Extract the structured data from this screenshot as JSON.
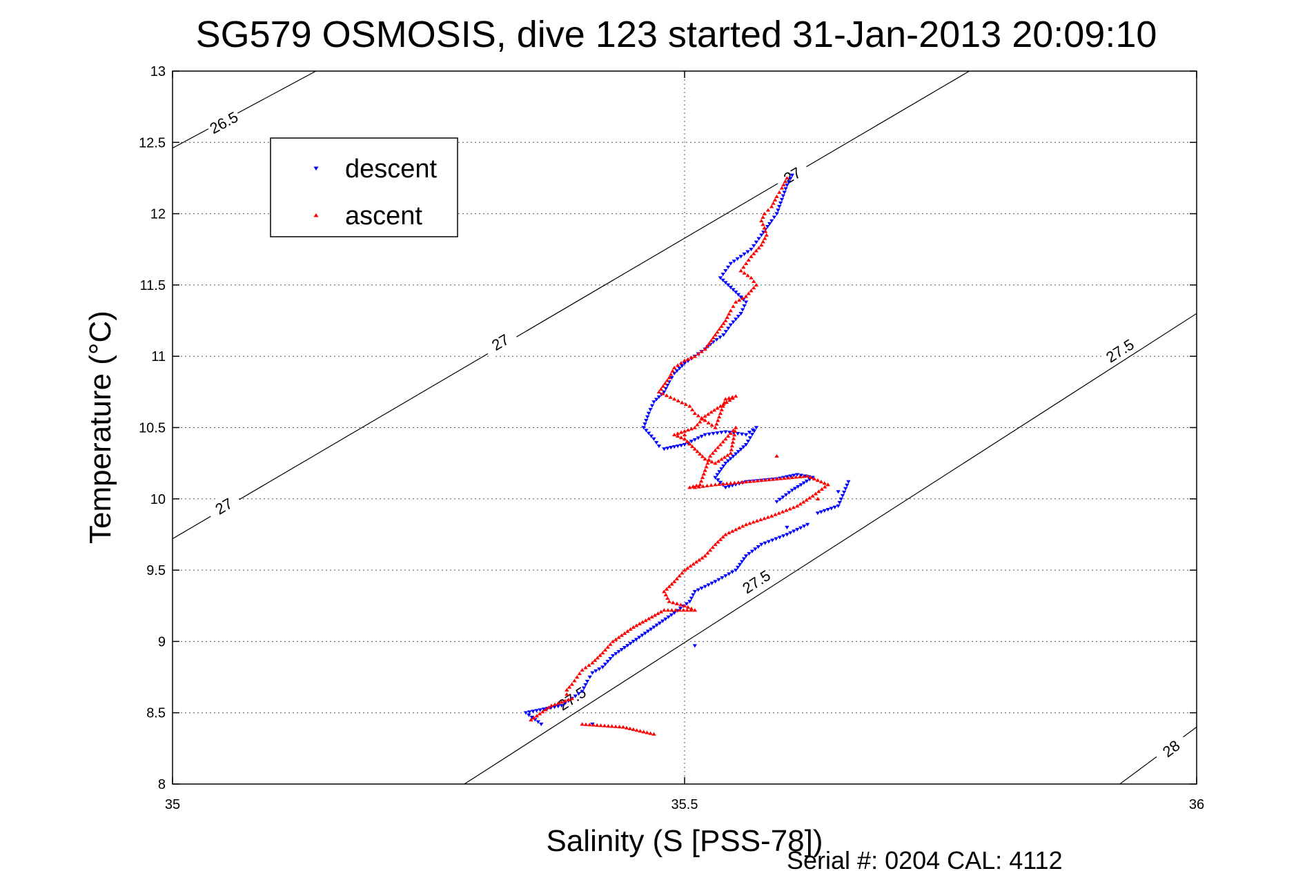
{
  "chart_data": {
    "type": "scatter",
    "title": "SG579 OSMOSIS, dive 123 started 31-Jan-2013 20:09:10",
    "xlabel": "Salinity (S [PSS-78])",
    "ylabel": "Temperature (°C)",
    "xlim": [
      35,
      36
    ],
    "ylim": [
      8,
      13
    ],
    "x_ticks": [
      "35",
      "35.5",
      "36"
    ],
    "y_ticks": [
      "8",
      "8.5",
      "9",
      "9.5",
      "10",
      "10.5",
      "11",
      "11.5",
      "12",
      "12.5",
      "13"
    ],
    "grid": "dotted",
    "legend_position": "upper-left",
    "footer": "Serial #: 0204  CAL: 4112",
    "isopycnals": [
      {
        "label": "26.5",
        "points": [
          [
            35.0,
            12.46
          ],
          [
            35.14,
            13.0
          ]
        ],
        "label_positions": [
          [
            35.05,
            12.64
          ]
        ]
      },
      {
        "label": "27",
        "points": [
          [
            35.0,
            9.72
          ],
          [
            35.778,
            13.0
          ]
        ],
        "label_positions": [
          [
            35.05,
            9.95
          ],
          [
            35.32,
            11.1
          ],
          [
            35.605,
            12.27
          ]
        ]
      },
      {
        "label": "27.5",
        "points": [
          [
            35.285,
            8.0
          ],
          [
            36.0,
            11.3
          ]
        ],
        "label_positions": [
          [
            35.39,
            8.6
          ],
          [
            35.57,
            9.42
          ],
          [
            35.925,
            11.04
          ]
        ]
      },
      {
        "label": "28",
        "points": [
          [
            35.925,
            8.0
          ],
          [
            36.0,
            8.4
          ]
        ],
        "label_positions": [
          [
            35.975,
            8.25
          ]
        ]
      }
    ],
    "series": [
      {
        "name": "descent",
        "color": "#0000ff",
        "marker": "triangle-down",
        "x": [
          35.605,
          35.6,
          35.595,
          35.59,
          35.585,
          35.575,
          35.57,
          35.565,
          35.555,
          35.545,
          35.54,
          35.535,
          35.55,
          35.56,
          35.555,
          35.545,
          35.538,
          35.528,
          35.52,
          35.51,
          35.5,
          35.49,
          35.485,
          35.48,
          35.47,
          35.465,
          35.46,
          35.47,
          35.475,
          35.48,
          35.5,
          35.52,
          35.54,
          35.56,
          35.57,
          35.56,
          35.54,
          35.53,
          35.54,
          35.56,
          35.59,
          35.61,
          35.625,
          35.605,
          35.59,
          35.63,
          35.65,
          35.66,
          35.62,
          35.6,
          35.575,
          35.56,
          35.55,
          35.53,
          35.51,
          35.505,
          35.49,
          35.47,
          35.45,
          35.43,
          35.42,
          35.41,
          35.405,
          35.4,
          35.39,
          35.38,
          35.345,
          35.36,
          35.41,
          35.51,
          35.6,
          35.65
        ],
        "y": [
          12.27,
          12.2,
          12.1,
          12.0,
          11.95,
          11.85,
          11.8,
          11.75,
          11.7,
          11.65,
          11.6,
          11.55,
          11.45,
          11.38,
          11.3,
          11.22,
          11.15,
          11.1,
          11.05,
          11.0,
          10.95,
          10.88,
          10.82,
          10.75,
          10.68,
          10.6,
          10.5,
          10.42,
          10.37,
          10.35,
          10.38,
          10.45,
          10.47,
          10.45,
          10.5,
          10.38,
          10.25,
          10.15,
          10.08,
          10.12,
          10.14,
          10.17,
          10.15,
          10.06,
          9.98,
          9.9,
          9.95,
          10.12,
          9.82,
          9.75,
          9.68,
          9.6,
          9.5,
          9.42,
          9.35,
          9.28,
          9.2,
          9.1,
          9.0,
          8.9,
          8.82,
          8.78,
          8.72,
          8.65,
          8.6,
          8.55,
          8.5,
          8.42,
          8.42,
          8.97,
          9.8,
          10.05
        ]
      },
      {
        "name": "ascent",
        "color": "#ff0000",
        "marker": "triangle-up",
        "x": [
          35.6,
          35.595,
          35.59,
          35.585,
          35.578,
          35.575,
          35.578,
          35.58,
          35.575,
          35.565,
          35.56,
          35.555,
          35.565,
          35.57,
          35.56,
          35.55,
          35.545,
          35.54,
          35.53,
          35.52,
          35.51,
          35.5,
          35.49,
          35.485,
          35.475,
          35.49,
          35.505,
          35.51,
          35.52,
          35.53,
          35.54,
          35.55,
          35.535,
          35.52,
          35.51,
          35.49,
          35.5,
          35.51,
          35.52,
          35.53,
          35.545,
          35.55,
          35.535,
          35.525,
          35.52,
          35.515,
          35.505,
          35.51,
          35.53,
          35.56,
          35.59,
          35.62,
          35.64,
          35.625,
          35.61,
          35.585,
          35.56,
          35.54,
          35.53,
          35.52,
          35.5,
          35.49,
          35.48,
          35.485,
          35.5,
          35.51,
          35.48,
          35.45,
          35.43,
          35.42,
          35.41,
          35.4,
          35.395,
          35.39,
          35.385,
          35.385,
          35.39,
          35.37,
          35.35,
          35.4,
          35.44,
          35.47,
          35.59,
          35.63,
          35.5
        ],
        "y": [
          12.25,
          12.18,
          12.12,
          12.05,
          12.0,
          11.95,
          11.9,
          11.85,
          11.78,
          11.7,
          11.65,
          11.6,
          11.55,
          11.5,
          11.42,
          11.38,
          11.32,
          11.25,
          11.15,
          11.05,
          11.0,
          10.97,
          10.92,
          10.85,
          10.75,
          10.7,
          10.65,
          10.6,
          10.55,
          10.5,
          10.7,
          10.72,
          10.65,
          10.58,
          10.5,
          10.45,
          10.42,
          10.35,
          10.28,
          10.25,
          10.32,
          10.5,
          10.38,
          10.3,
          10.2,
          10.1,
          10.08,
          10.08,
          10.1,
          10.12,
          10.14,
          10.16,
          10.1,
          10.02,
          9.95,
          9.88,
          9.82,
          9.75,
          9.68,
          9.6,
          9.5,
          9.42,
          9.35,
          9.28,
          9.25,
          9.22,
          9.22,
          9.1,
          9.0,
          8.92,
          8.85,
          8.8,
          8.75,
          8.7,
          8.66,
          8.63,
          8.6,
          8.55,
          8.45,
          8.42,
          8.4,
          8.35,
          10.3,
          10.0,
          10.45
        ]
      }
    ]
  }
}
